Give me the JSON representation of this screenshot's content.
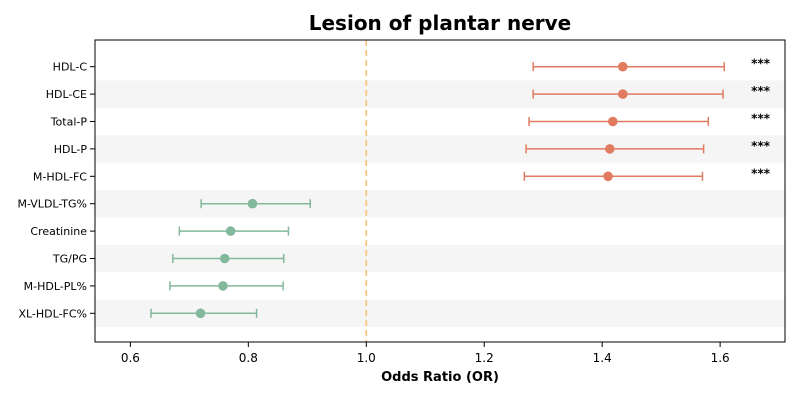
{
  "chart_data": {
    "type": "forest",
    "title": "Lesion of plantar nerve",
    "xlabel": "Odds Ratio (OR)",
    "xlim": [
      0.54,
      1.71
    ],
    "xticks": [
      "0.6",
      "0.8",
      "1.0",
      "1.2",
      "1.4",
      "1.6"
    ],
    "reference_line": 1.0,
    "colors": {
      "risk": "#e07b5f",
      "protective": "#82b89b",
      "reference": "#f5c07a",
      "stripe": "#f5f5f5"
    },
    "rows": [
      {
        "label": "HDL-C",
        "or": 1.435,
        "lo": 1.283,
        "hi": 1.607,
        "sig": "***"
      },
      {
        "label": "HDL-CE",
        "or": 1.435,
        "lo": 1.283,
        "hi": 1.605,
        "sig": "***"
      },
      {
        "label": "Total-P",
        "or": 1.418,
        "lo": 1.276,
        "hi": 1.58,
        "sig": "***"
      },
      {
        "label": "HDL-P",
        "or": 1.413,
        "lo": 1.271,
        "hi": 1.572,
        "sig": "***"
      },
      {
        "label": "M-HDL-FC",
        "or": 1.41,
        "lo": 1.268,
        "hi": 1.57,
        "sig": "***"
      },
      {
        "label": "M-VLDL-TG%",
        "or": 0.807,
        "lo": 0.72,
        "hi": 0.905,
        "sig": ""
      },
      {
        "label": "Creatinine",
        "or": 0.77,
        "lo": 0.683,
        "hi": 0.868,
        "sig": ""
      },
      {
        "label": "TG/PG",
        "or": 0.76,
        "lo": 0.672,
        "hi": 0.86,
        "sig": ""
      },
      {
        "label": "M-HDL-PL%",
        "or": 0.757,
        "lo": 0.667,
        "hi": 0.859,
        "sig": ""
      },
      {
        "label": "XL-HDL-FC%",
        "or": 0.719,
        "lo": 0.635,
        "hi": 0.814,
        "sig": ""
      }
    ]
  }
}
